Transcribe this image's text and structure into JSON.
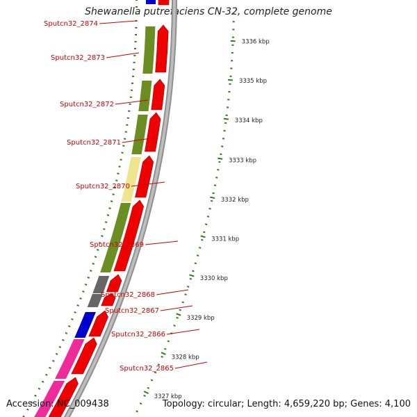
{
  "header": {
    "title": "Shewanella putrefaciens CN-32, complete genome"
  },
  "footer": {
    "accession": "Accession: NC_009438",
    "summary": "Topology: circular; Length: 4,659,220 bp; Genes: 4,100"
  },
  "scale": {
    "tick_color": "#2e7d1a",
    "labels": [
      "3336 kbp",
      "3335 kbp",
      "3334 kbp",
      "3333 kbp",
      "3332 kbp",
      "3331 kbp",
      "3330 kbp",
      "3329 kbp",
      "3328 kbp",
      "3327 kbp"
    ]
  },
  "colors": {
    "cds_red": "#ee0000",
    "label_red": "#cc0000",
    "olive": "#6b8e23",
    "pale_yellow": "#eee58f",
    "dark_gray": "#666666",
    "blue": "#0000cc",
    "magenta": "#ee2b9a",
    "backbone": "#8f8f8f"
  },
  "genes": [
    {
      "name": "Sputcn32_2874",
      "category": "blue"
    },
    {
      "name": "Sputcn32_2873",
      "category": "olive"
    },
    {
      "name": "Sputcn32_2872",
      "category": "olive"
    },
    {
      "name": "Sputcn32_2871",
      "category": "olive"
    },
    {
      "name": "Sputcn32_2870",
      "category": "pale_yellow"
    },
    {
      "name": "Sputcn32_2869",
      "category": "olive"
    },
    {
      "name": "Sputcn32_2868",
      "category": "dark_gray"
    },
    {
      "name": "Sputcn32_2867",
      "category": "dark_gray"
    },
    {
      "name": "Sputcn32_2866",
      "category": "blue"
    },
    {
      "name": "Sputcn32_2865",
      "category": "magenta"
    }
  ]
}
